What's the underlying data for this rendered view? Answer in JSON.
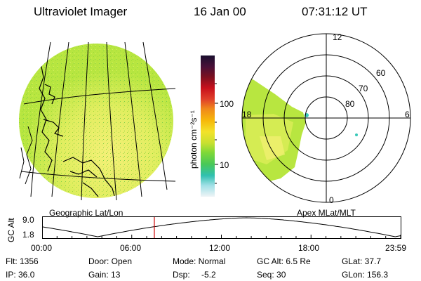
{
  "header": {
    "instrument": "Ultraviolet Imager",
    "date": "16 Jan 00",
    "time": "07:31:12 UT"
  },
  "left_panel": {
    "caption": "Geographic Lat/Lon"
  },
  "colorbar": {
    "unit_label": "photon cm⁻²s⁻¹",
    "tick_100": "100",
    "tick_10": "10"
  },
  "polar_panel": {
    "caption": "Apex MLat/MLT",
    "mlt_12": "12",
    "mlt_6": "6",
    "mlt_18": "18",
    "mlt_0": "0",
    "lat_60": "60",
    "lat_70": "70",
    "lat_80": "80"
  },
  "altitude_plot": {
    "ylabel": "GC Alt",
    "y_top": "9.0",
    "y_bottom": "1.8",
    "x_ticks": [
      "00:00",
      "06:00",
      "12:00",
      "18:00",
      "23:59"
    ],
    "current_time_fraction": 0.313,
    "trace_color": "#000000",
    "marker_color": "#cc0000"
  },
  "info": {
    "flt": "Flt: 1356",
    "door": "Door: Open",
    "mode": "Mode: Normal",
    "gc_alt": "GC Alt: 6.5 Re",
    "glat": "GLat: 37.7",
    "ip": "IP: 36.0",
    "gain": "Gain: 13",
    "dsp_label": "Dsp:",
    "dsp_value": "-5.2",
    "seq": "Seq: 30",
    "glon": "GLon: 156.3"
  },
  "colors": {
    "colorbar_stops": [
      "#1a0f2e",
      "#4a1038",
      "#7a1020",
      "#c8101c",
      "#e0402a",
      "#f08a1a",
      "#f6b80a",
      "#f3e22a",
      "#c8e030",
      "#7dd838",
      "#48c858",
      "#30c0b0",
      "#a0e0e6",
      "#eef4f6"
    ],
    "emission_base": "#b8e640",
    "emission_bright": "#f5f078",
    "emission_spot": "#38c8b8"
  }
}
